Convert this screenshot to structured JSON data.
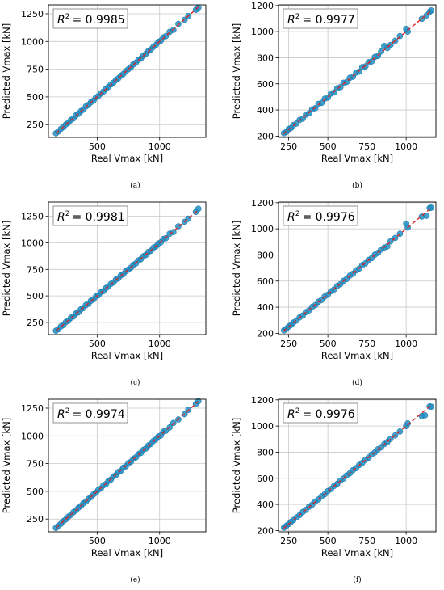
{
  "chart_data": [
    {
      "type": "scatter",
      "caption": "(a)",
      "xlabel": "Real Vmax [kN]",
      "ylabel": "Predicted Vmax [kN]",
      "r2_prefix": "R",
      "r2_sup": "2",
      "r2_value": "= 0.9985",
      "xlim": [
        110,
        1370
      ],
      "ylim": [
        135,
        1330
      ],
      "xticks": [
        500,
        1000
      ],
      "yticks": [
        250,
        500,
        750,
        1000,
        1250
      ],
      "diagonal": [
        [
          170,
          170
        ],
        [
          1310,
          1310
        ]
      ],
      "x": [
        170,
        190,
        210,
        230,
        250,
        270,
        290,
        310,
        330,
        350,
        370,
        390,
        410,
        430,
        450,
        470,
        490,
        510,
        530,
        550,
        570,
        590,
        610,
        630,
        650,
        670,
        690,
        710,
        730,
        750,
        770,
        790,
        810,
        830,
        850,
        870,
        890,
        910,
        930,
        950,
        970,
        990,
        1010,
        1030,
        1050,
        1080,
        1110,
        1150,
        1200,
        1230,
        1290,
        1310
      ],
      "y": [
        172,
        188,
        212,
        228,
        252,
        268,
        292,
        306,
        334,
        348,
        372,
        386,
        414,
        428,
        452,
        466,
        494,
        508,
        532,
        548,
        572,
        590,
        612,
        628,
        652,
        668,
        692,
        708,
        732,
        750,
        768,
        794,
        808,
        834,
        846,
        872,
        888,
        914,
        928,
        952,
        968,
        996,
        1008,
        1036,
        1048,
        1086,
        1104,
        1158,
        1195,
        1230,
        1285,
        1305
      ]
    },
    {
      "type": "scatter",
      "caption": "(b)",
      "xlabel": "Real Vmax [kN]",
      "ylabel": "Predicted Vmax [kN]",
      "r2_prefix": "R",
      "r2_sup": "2",
      "r2_value": "= 0.9977",
      "xlim": [
        185,
        1190
      ],
      "ylim": [
        190,
        1205
      ],
      "xticks": [
        250,
        500,
        750,
        1000
      ],
      "yticks": [
        200,
        400,
        600,
        800,
        1000,
        1200
      ],
      "diagonal": [
        [
          215,
          215
        ],
        [
          1160,
          1160
        ]
      ],
      "x": [
        220,
        235,
        250,
        265,
        280,
        300,
        320,
        340,
        360,
        380,
        400,
        420,
        440,
        460,
        480,
        500,
        520,
        540,
        560,
        580,
        600,
        620,
        640,
        660,
        680,
        700,
        720,
        740,
        760,
        780,
        800,
        820,
        840,
        860,
        880,
        900,
        930,
        960,
        1000,
        1010,
        1100,
        1130,
        1150,
        1160
      ],
      "y": [
        222,
        232,
        254,
        262,
        284,
        296,
        324,
        334,
        364,
        374,
        404,
        414,
        446,
        454,
        486,
        494,
        526,
        534,
        566,
        574,
        608,
        614,
        646,
        654,
        686,
        694,
        728,
        734,
        766,
        772,
        806,
        814,
        848,
        890,
        874,
        898,
        930,
        966,
        1020,
        1000,
        1098,
        1124,
        1152,
        1162
      ]
    },
    {
      "type": "scatter",
      "caption": "(c)",
      "xlabel": "Real Vmax [kN]",
      "ylabel": "Predicted Vmax [kN]",
      "r2_prefix": "R",
      "r2_sup": "2",
      "r2_value": "= 0.9981",
      "xlim": [
        110,
        1370
      ],
      "ylim": [
        135,
        1385
      ],
      "xticks": [
        500,
        1000
      ],
      "yticks": [
        250,
        500,
        750,
        1000,
        1250
      ],
      "diagonal": [
        [
          170,
          170
        ],
        [
          1310,
          1310
        ]
      ],
      "x": [
        170,
        190,
        210,
        230,
        250,
        270,
        290,
        310,
        330,
        350,
        370,
        390,
        410,
        430,
        450,
        470,
        490,
        510,
        530,
        550,
        570,
        590,
        610,
        630,
        650,
        670,
        690,
        710,
        730,
        750,
        770,
        790,
        810,
        830,
        850,
        870,
        890,
        910,
        930,
        950,
        970,
        990,
        1010,
        1030,
        1050,
        1080,
        1110,
        1150,
        1200,
        1230,
        1290,
        1310
      ],
      "y": [
        172,
        186,
        212,
        226,
        254,
        266,
        294,
        306,
        334,
        346,
        374,
        386,
        414,
        426,
        454,
        466,
        494,
        506,
        534,
        546,
        574,
        588,
        614,
        626,
        654,
        666,
        694,
        706,
        734,
        748,
        766,
        794,
        806,
        834,
        846,
        874,
        886,
        914,
        926,
        954,
        966,
        994,
        1006,
        1036,
        1044,
        1086,
        1102,
        1156,
        1198,
        1228,
        1292,
        1322
      ]
    },
    {
      "type": "scatter",
      "caption": "(d)",
      "xlabel": "Real Vmax [kN]",
      "ylabel": "Predicted Vmax [kN]",
      "r2_prefix": "R",
      "r2_sup": "2",
      "r2_value": "= 0.9976",
      "xlim": [
        185,
        1190
      ],
      "ylim": [
        190,
        1205
      ],
      "xticks": [
        250,
        500,
        750,
        1000
      ],
      "yticks": [
        200,
        400,
        600,
        800,
        1000,
        1200
      ],
      "diagonal": [
        [
          215,
          215
        ],
        [
          1160,
          1160
        ]
      ],
      "x": [
        220,
        235,
        250,
        265,
        280,
        300,
        320,
        340,
        360,
        380,
        400,
        420,
        440,
        460,
        480,
        500,
        520,
        540,
        560,
        580,
        600,
        620,
        640,
        660,
        680,
        700,
        720,
        740,
        760,
        780,
        800,
        820,
        840,
        860,
        880,
        900,
        930,
        960,
        1000,
        1010,
        1100,
        1130,
        1150,
        1160
      ],
      "y": [
        222,
        234,
        252,
        264,
        282,
        298,
        322,
        336,
        362,
        376,
        402,
        416,
        442,
        456,
        482,
        496,
        522,
        536,
        562,
        576,
        602,
        616,
        642,
        656,
        682,
        696,
        722,
        736,
        762,
        776,
        802,
        816,
        842,
        856,
        866,
        904,
        930,
        962,
        1040,
        1010,
        1094,
        1100,
        1160,
        1162
      ]
    },
    {
      "type": "scatter",
      "caption": "(e)",
      "xlabel": "Real Vmax [kN]",
      "ylabel": "Predicted Vmax [kN]",
      "r2_prefix": "R",
      "r2_sup": "2",
      "r2_value": "= 0.9974",
      "xlim": [
        110,
        1370
      ],
      "ylim": [
        135,
        1330
      ],
      "xticks": [
        500,
        1000
      ],
      "yticks": [
        250,
        500,
        750,
        1000,
        1250
      ],
      "diagonal": [
        [
          170,
          170
        ],
        [
          1310,
          1310
        ]
      ],
      "x": [
        170,
        190,
        210,
        230,
        250,
        270,
        290,
        310,
        330,
        350,
        370,
        390,
        410,
        430,
        450,
        470,
        490,
        510,
        530,
        550,
        570,
        590,
        610,
        630,
        650,
        670,
        690,
        710,
        730,
        750,
        770,
        790,
        810,
        830,
        850,
        870,
        890,
        910,
        930,
        950,
        970,
        990,
        1010,
        1030,
        1050,
        1080,
        1110,
        1150,
        1200,
        1230,
        1290,
        1310
      ],
      "y": [
        170,
        190,
        208,
        232,
        248,
        272,
        288,
        312,
        328,
        352,
        368,
        392,
        408,
        432,
        448,
        472,
        488,
        514,
        526,
        554,
        566,
        594,
        606,
        634,
        646,
        674,
        686,
        714,
        726,
        754,
        766,
        794,
        806,
        834,
        846,
        874,
        886,
        914,
        928,
        954,
        968,
        994,
        1004,
        1038,
        1046,
        1076,
        1116,
        1148,
        1195,
        1234,
        1288,
        1312
      ]
    },
    {
      "type": "scatter",
      "caption": "(f)",
      "xlabel": "Real Vmax [kN]",
      "ylabel": "Predicted Vmax [kN]",
      "r2_prefix": "R",
      "r2_sup": "2",
      "r2_value": "= 0.9976",
      "xlim": [
        185,
        1190
      ],
      "ylim": [
        190,
        1205
      ],
      "xticks": [
        250,
        500,
        750,
        1000
      ],
      "yticks": [
        200,
        400,
        600,
        800,
        1000,
        1200
      ],
      "diagonal": [
        [
          215,
          215
        ],
        [
          1160,
          1160
        ]
      ],
      "x": [
        220,
        235,
        250,
        265,
        280,
        300,
        320,
        340,
        360,
        380,
        400,
        420,
        440,
        460,
        480,
        500,
        520,
        540,
        560,
        580,
        600,
        620,
        640,
        660,
        680,
        700,
        720,
        740,
        760,
        780,
        800,
        820,
        840,
        860,
        880,
        900,
        930,
        960,
        1000,
        1010,
        1100,
        1120,
        1150,
        1160
      ],
      "y": [
        222,
        236,
        250,
        266,
        280,
        300,
        318,
        342,
        358,
        382,
        398,
        422,
        438,
        462,
        478,
        502,
        518,
        542,
        558,
        582,
        598,
        622,
        638,
        662,
        678,
        702,
        718,
        742,
        758,
        782,
        798,
        822,
        838,
        862,
        878,
        902,
        928,
        958,
        1000,
        1020,
        1076,
        1082,
        1150,
        1148
      ]
    }
  ]
}
